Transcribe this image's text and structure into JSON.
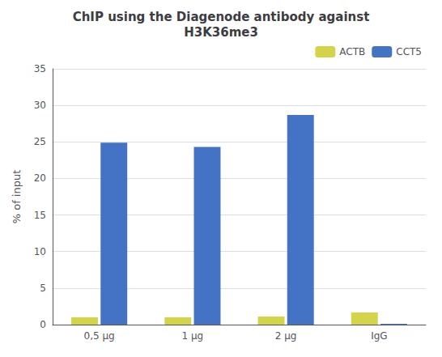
{
  "chart_data": {
    "type": "bar",
    "title": "ChIP using the Diagenode antibody against\nH3K36me3",
    "ylabel": "% of input",
    "categories": [
      "0,5 μg",
      "1 μg",
      "2 μg",
      "IgG"
    ],
    "series": [
      {
        "name": "ACTB",
        "color": "#d4d44a",
        "values": [
          1.0,
          1.0,
          1.1,
          1.65
        ]
      },
      {
        "name": "CCT5",
        "color": "#4472c4",
        "values": [
          24.9,
          24.3,
          28.7,
          0.12
        ]
      }
    ],
    "ylim": [
      0,
      35
    ],
    "yticks": [
      0,
      5,
      10,
      15,
      20,
      25,
      30,
      35
    ],
    "grid": true,
    "legend": "upper right"
  }
}
